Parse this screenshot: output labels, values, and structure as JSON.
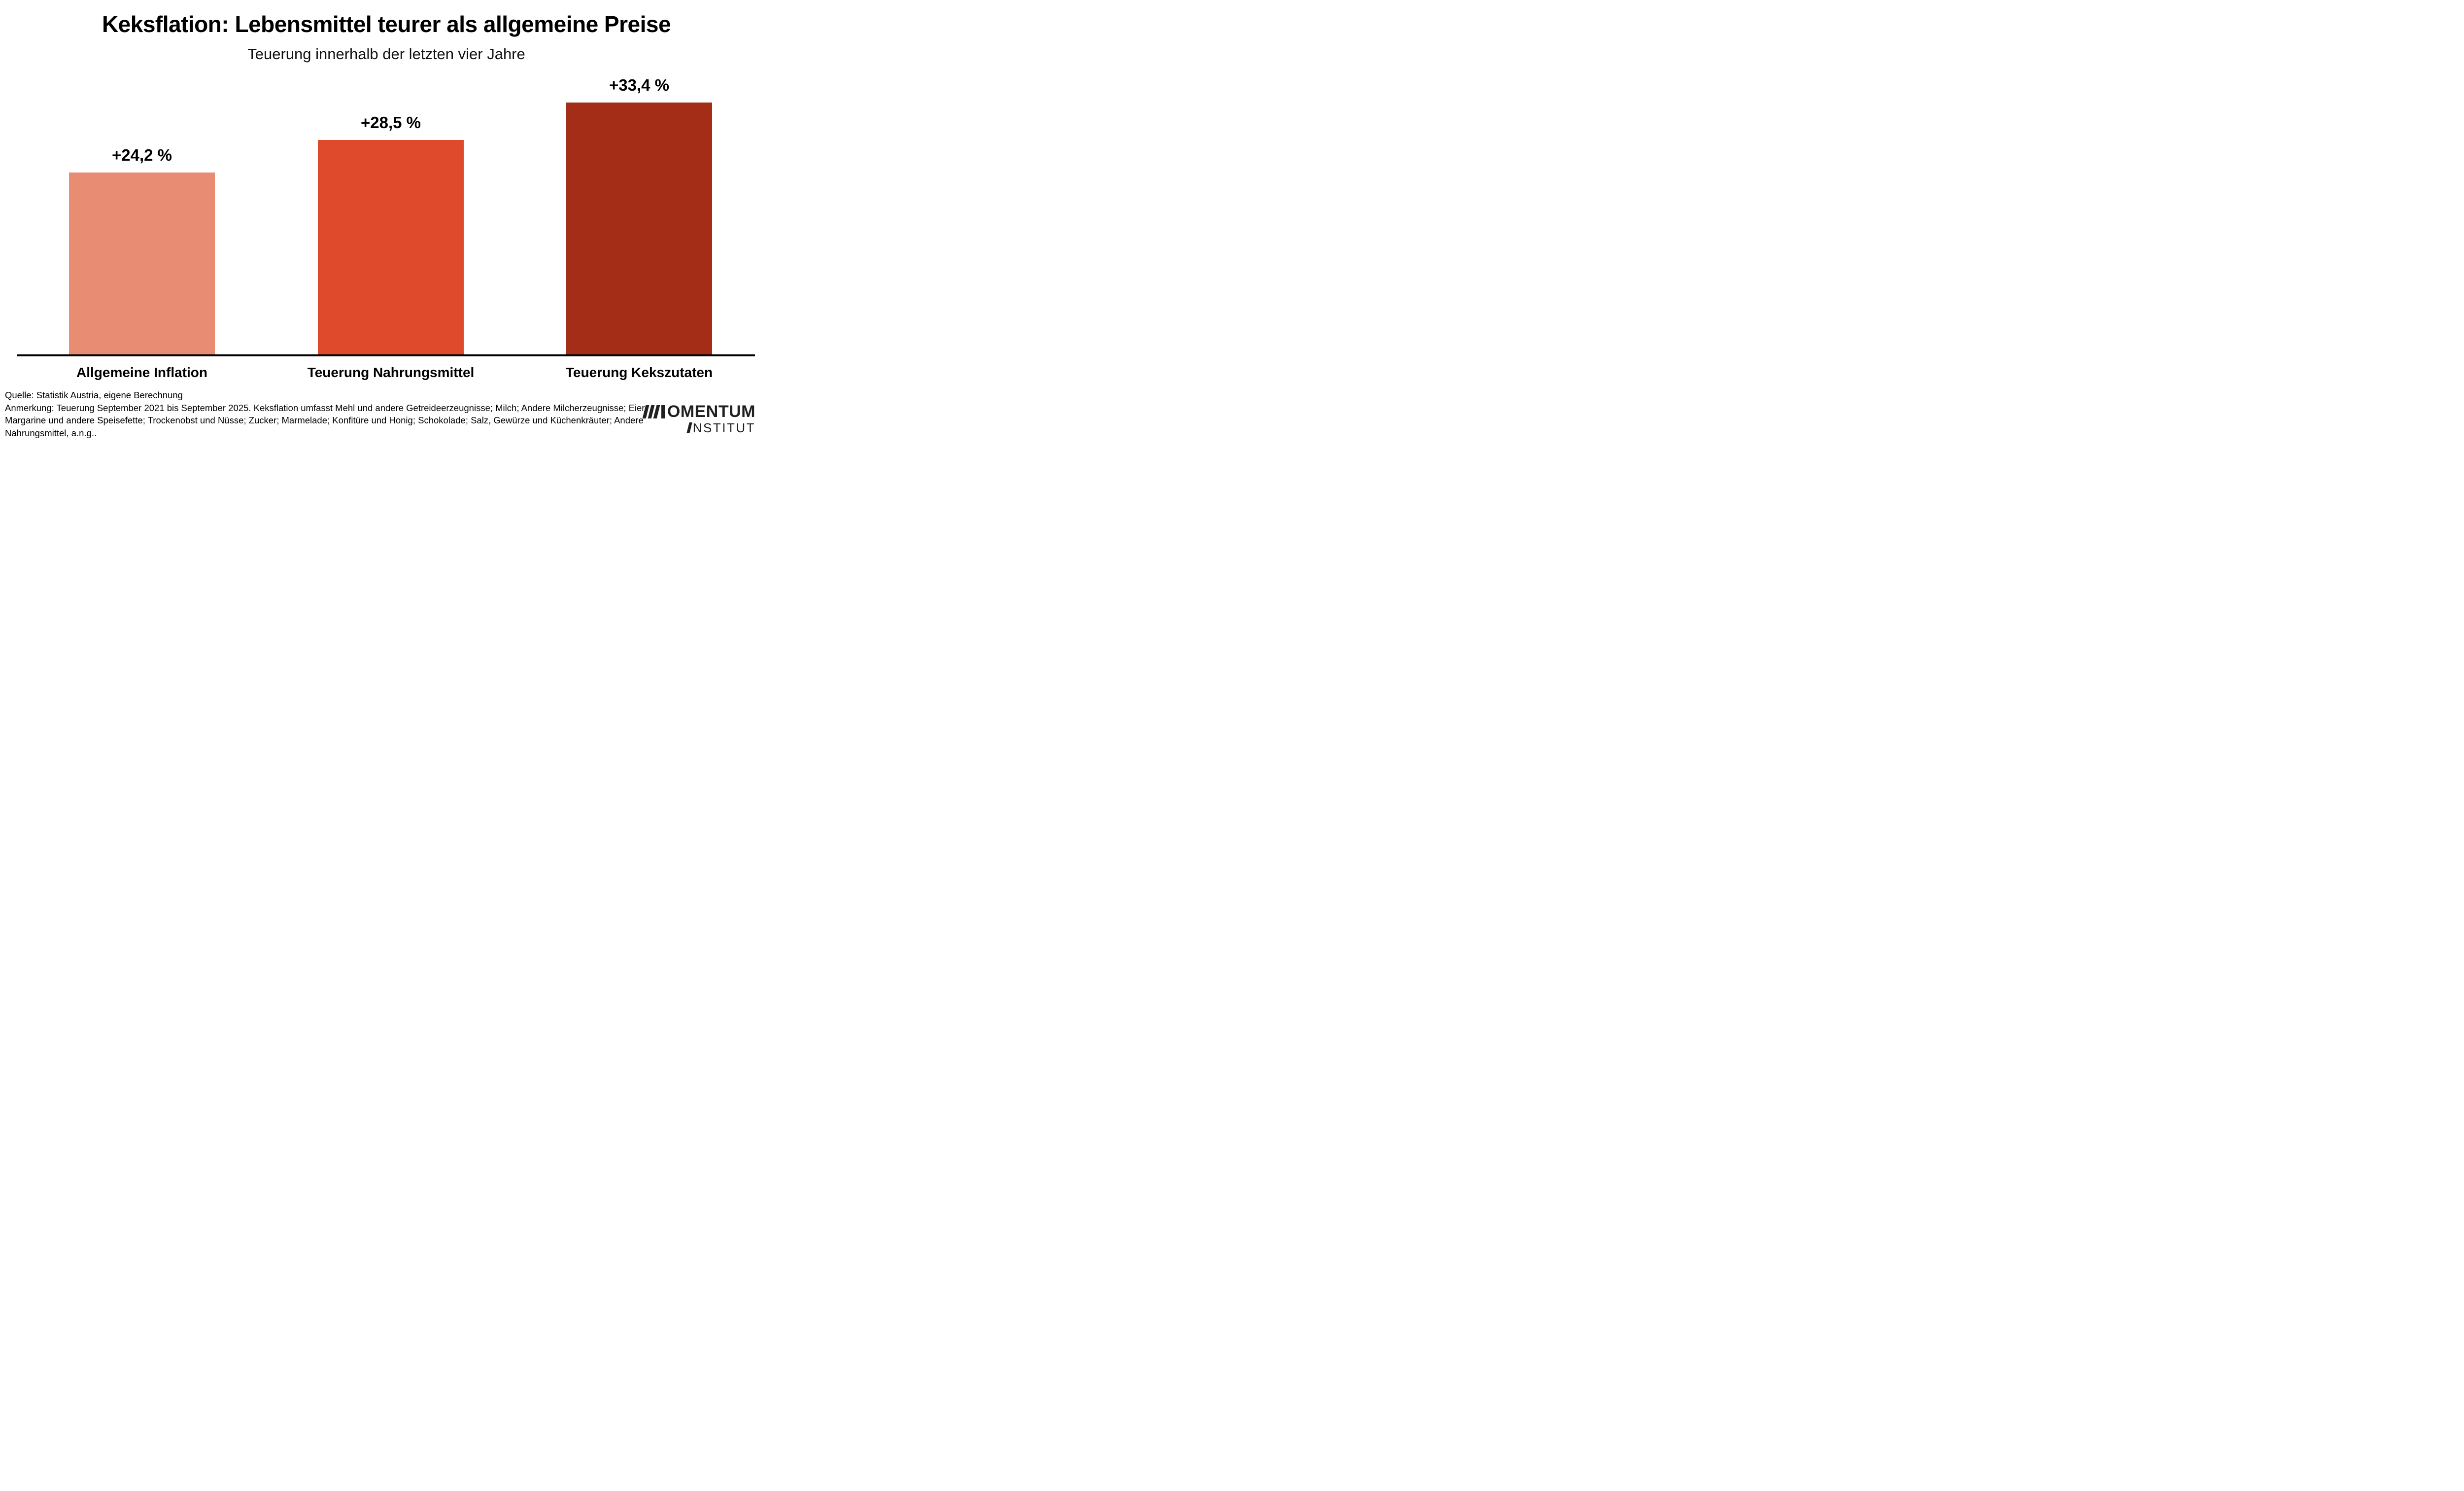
{
  "chart_data": {
    "type": "bar",
    "title": "Keksflation: Lebensmittel teurer als allgemeine Preise",
    "subtitle": "Teuerung innerhalb der letzten vier Jahre",
    "categories": [
      "Allgemeine Inflation",
      "Teuerung Nahrungsmittel",
      "Teuerung Kekszutaten"
    ],
    "values": [
      24.2,
      28.5,
      33.4
    ],
    "value_labels": [
      "+24,2 %",
      "+28,5 %",
      "+33,4 %"
    ],
    "bar_colors": [
      "#E98C74",
      "#DE4A2B",
      "#A32D17"
    ],
    "axis_color": "#000000",
    "xlabel": "",
    "ylabel": "",
    "ylim": [
      0,
      47
    ],
    "grid": false,
    "legend": false
  },
  "footer": {
    "source": "Quelle: Statistik Austria, eigene Berechnung",
    "note_lines": [
      "Anmerkung: Teuerung September 2021 bis September 2025. Keksflation umfasst Mehl und andere Getreideerzeugnisse; Milch; Andere Milcherzeugnisse; Eier;",
      "Margarine und andere Speisefette; Trockenobst und Nüsse; Zucker; Marmelade; Konfitüre und Honig; Schokolade; Salz, Gewürze und Küchenkräuter; Andere",
      "Nahrungsmittel, a.n.g.."
    ]
  },
  "logo": {
    "line1": "OMENTUM",
    "line2": "NSTITUT",
    "color": "#221F1F"
  }
}
